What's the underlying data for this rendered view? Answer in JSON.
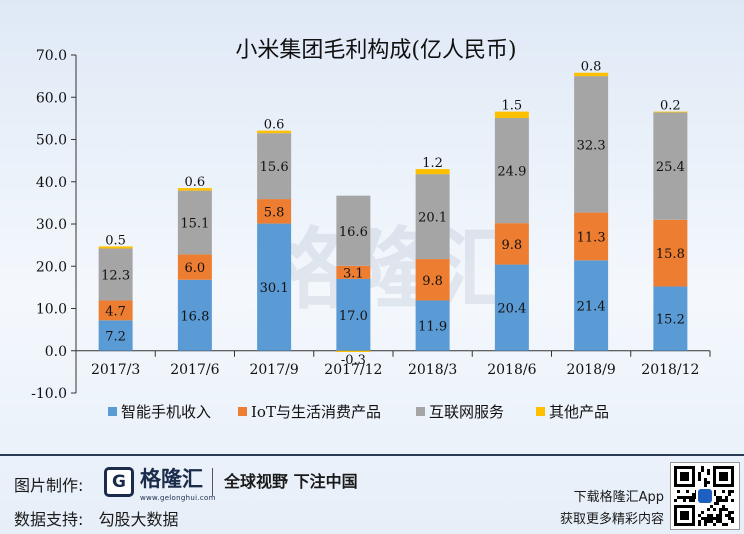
{
  "chart_data": {
    "type": "bar",
    "stacked": true,
    "title": "小米集团毛利构成(亿人民币)",
    "categories": [
      "2017/3",
      "2017/6",
      "2017/9",
      "2017/12",
      "2018/3",
      "2018/6",
      "2018/9",
      "2018/12"
    ],
    "series": [
      {
        "name": "智能手机收入",
        "color": "#5b9bd5",
        "values": [
          7.2,
          16.8,
          30.1,
          17.0,
          11.9,
          20.4,
          21.4,
          15.2
        ]
      },
      {
        "name": "IoT与生活消费产品",
        "color": "#ed7d31",
        "values": [
          4.7,
          6.0,
          5.8,
          3.1,
          9.8,
          9.8,
          11.3,
          15.8
        ]
      },
      {
        "name": "互联网服务",
        "color": "#a5a5a5",
        "values": [
          12.3,
          15.1,
          15.6,
          16.6,
          20.1,
          24.9,
          32.3,
          25.4
        ]
      },
      {
        "name": "其他产品",
        "color": "#ffc000",
        "values": [
          0.5,
          0.6,
          0.6,
          -0.3,
          1.2,
          1.5,
          0.8,
          0.2
        ]
      }
    ],
    "ylim": [
      -10,
      70
    ],
    "yticks": [
      "-10.0",
      "0.0",
      "10.0",
      "20.0",
      "30.0",
      "40.0",
      "50.0",
      "60.0",
      "70.0"
    ],
    "grid": false,
    "legend": "bottom",
    "watermark": "格隆汇"
  },
  "footer": {
    "image_credit_label": "图片制作:",
    "data_credit_label": "数据支持:",
    "data_credit_value": "勾股大数据",
    "logo_glyph": "G",
    "logo_name": "格隆汇",
    "logo_url": "www.gelonghui.com",
    "slogan": "全球视野 下注中国",
    "app_line1": "下载格隆汇App",
    "app_line2": "获取更多精彩内容"
  }
}
